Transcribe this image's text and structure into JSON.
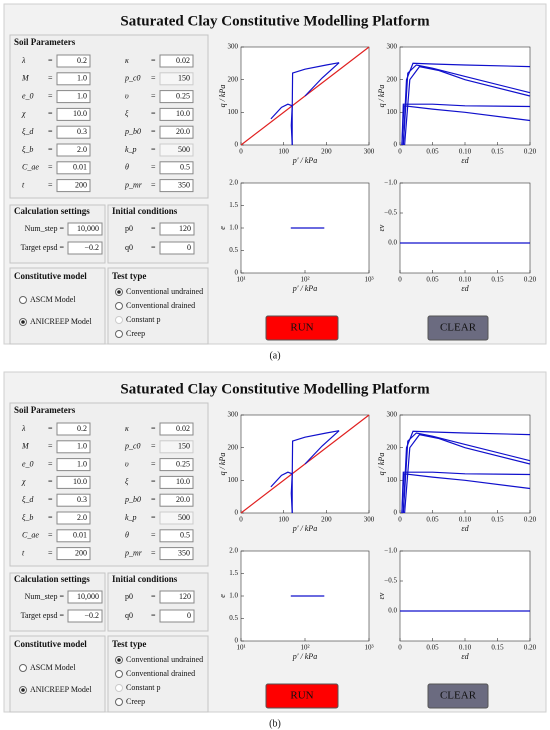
{
  "panels": [
    {
      "title": "Saturated Clay Constitutive Modelling Platform",
      "caption": "(a)",
      "soil_parameters": {
        "heading": "Soil Parameters",
        "rows": [
          [
            {
              "label": "λ",
              "value": "0.2"
            },
            {
              "label": "κ",
              "value": "0.02"
            }
          ],
          [
            {
              "label": "M",
              "value": "1.0"
            },
            {
              "label": "p_c0",
              "value": "150",
              "disabled": true
            }
          ],
          [
            {
              "label": "e_0",
              "value": "1.0"
            },
            {
              "label": "υ",
              "value": "0.25"
            }
          ],
          [
            {
              "label": "χ",
              "value": "10.0"
            },
            {
              "label": "ξ",
              "value": "10.0"
            }
          ],
          [
            {
              "label": "ξ_d",
              "value": "0.3"
            },
            {
              "label": "p_b0",
              "value": "20.0"
            }
          ],
          [
            {
              "label": "ξ_b",
              "value": "2.0"
            },
            {
              "label": "k_p",
              "value": "500",
              "disabled": true
            }
          ],
          [
            {
              "label": "C_ae",
              "value": "0.01"
            },
            {
              "label": "θ",
              "value": "0.5"
            }
          ],
          [
            {
              "label": "t",
              "value": "200"
            },
            {
              "label": "p_mr",
              "value": "350"
            }
          ]
        ]
      },
      "calculation_settings": {
        "heading": "Calculation settings",
        "rows": [
          {
            "label": "Num_step =",
            "value": "10,000"
          },
          {
            "label": "Target epsd =",
            "value": "−0.2"
          }
        ]
      },
      "initial_conditions": {
        "heading": "Initial conditions",
        "rows": [
          {
            "label": "p0",
            "value": "120"
          },
          {
            "label": "q0",
            "value": "0"
          }
        ]
      },
      "constitutive_model": {
        "heading": "Constitutive model",
        "options": [
          {
            "label": "ASCM Model",
            "checked": false
          },
          {
            "label": "ANICREEP Model",
            "checked": true
          }
        ]
      },
      "test_type": {
        "heading": "Test type",
        "options": [
          {
            "label": "Conventional undrained",
            "checked": true
          },
          {
            "label": "Conventional drained",
            "checked": false
          },
          {
            "label": "Constant p",
            "checked": false,
            "disabled": true
          },
          {
            "label": "Creep",
            "checked": false
          }
        ]
      },
      "buttons": [
        {
          "label": "RUN",
          "color": "#ff0000"
        },
        {
          "label": "CLEAR",
          "color": "#6b6b80"
        }
      ],
      "plots": [
        {
          "x_label": "p′ / kPa",
          "y_label": "q / kPa",
          "xlim": [
            0,
            300
          ],
          "ylim": [
            0,
            300
          ],
          "xticks": [
            0,
            100,
            200,
            300
          ],
          "yticks": [
            0,
            100,
            200,
            300
          ],
          "series": [
            {
              "color": "#e02020",
              "x": [
                0,
                300
              ],
              "y": [
                0,
                300
              ]
            },
            {
              "color": "#1010cc",
              "x": [
                120,
                120,
                121,
                150,
                200,
                230
              ],
              "y": [
                0,
                100,
                220,
                232,
                245,
                252
              ]
            },
            {
              "color": "#1010cc",
              "x": [
                150,
                190,
                230
              ],
              "y": [
                150,
                205,
                252
              ]
            },
            {
              "color": "#1010cc",
              "x": [
                70,
                95,
                110,
                120,
                118,
                120
              ],
              "y": [
                80,
                115,
                125,
                120,
                60,
                0
              ]
            }
          ]
        },
        {
          "x_label": "εd",
          "y_label": "q / kPa",
          "xlim": [
            0,
            0.2
          ],
          "ylim": [
            0,
            300
          ],
          "xticks": [
            0,
            0.05,
            {
              "value": 0.1,
              "label": "0.10"
            },
            0.15,
            {
              "value": 0.2,
              "label": "0.20"
            }
          ],
          "yticks": [
            0,
            100,
            200,
            300
          ],
          "series": [
            {
              "color": "#1010cc",
              "x": [
                0.005,
                0.01,
                0.02,
                0.05,
                0.1,
                0.2
              ],
              "y": [
                0,
                200,
                250,
                248,
                245,
                240
              ]
            },
            {
              "color": "#1010cc",
              "x": [
                0.005,
                0.012,
                0.025,
                0.05,
                0.1,
                0.2
              ],
              "y": [
                0,
                220,
                245,
                235,
                210,
                160
              ]
            },
            {
              "color": "#1010cc",
              "x": [
                0.007,
                0.015,
                0.03,
                0.06,
                0.1,
                0.2
              ],
              "y": [
                0,
                200,
                240,
                228,
                200,
                150
              ]
            },
            {
              "color": "#1010cc",
              "x": [
                0.003,
                0.006,
                0.05,
                0.1,
                0.2
              ],
              "y": [
                0,
                120,
                110,
                100,
                75
              ]
            },
            {
              "color": "#1010cc",
              "x": [
                0.003,
                0.005,
                0.05,
                0.1,
                0.2
              ],
              "y": [
                0,
                125,
                125,
                120,
                118
              ]
            }
          ]
        },
        {
          "x_label": "p′ / kPa",
          "y_label": "e",
          "xlim": [
            10,
            1000
          ],
          "log_x": true,
          "ylim": [
            0,
            2
          ],
          "xticks": [
            {
              "value": 10,
              "label": "10¹"
            },
            {
              "value": 100,
              "label": "10²"
            },
            {
              "value": 1000,
              "label": "10³"
            }
          ],
          "yticks": [
            0,
            0.5,
            {
              "value": 1,
              "label": "1.0"
            },
            1.5,
            {
              "value": 2,
              "label": "2.0"
            }
          ],
          "series": [
            {
              "color": "#1010cc",
              "x": [
                60,
                200
              ],
              "y": [
                1,
                1
              ]
            }
          ]
        },
        {
          "x_label": "εd",
          "y_label": "εv",
          "xlim": [
            0,
            0.2
          ],
          "ylim": [
            0.5,
            -1
          ],
          "xticks": [
            0,
            0.05,
            {
              "value": 0.1,
              "label": "0.10"
            },
            0.15,
            {
              "value": 0.2,
              "label": "0.20"
            }
          ],
          "yticks": [
            {
              "value": -1,
              "label": "−1.0"
            },
            {
              "value": -0.5,
              "label": "−0.5"
            },
            {
              "value": 0,
              "label": "0.0"
            }
          ],
          "series": [
            {
              "color": "#1010cc",
              "x": [
                0,
                0.2
              ],
              "y": [
                0,
                0
              ]
            }
          ]
        }
      ]
    },
    {
      "title": "Saturated Clay Constitutive Modelling Platform",
      "caption": "(b)",
      "soil_parameters": {
        "heading": "Soil Parameters",
        "rows": [
          [
            {
              "label": "λ",
              "value": "0.2"
            },
            {
              "label": "κ",
              "value": "0.02"
            }
          ],
          [
            {
              "label": "M",
              "value": "1.0"
            },
            {
              "label": "p_c0",
              "value": "150",
              "disabled": true
            }
          ],
          [
            {
              "label": "e_0",
              "value": "1.0"
            },
            {
              "label": "υ",
              "value": "0.25"
            }
          ],
          [
            {
              "label": "χ",
              "value": "10.0"
            },
            {
              "label": "ξ",
              "value": "10.0"
            }
          ],
          [
            {
              "label": "ξ_d",
              "value": "0.3"
            },
            {
              "label": "p_b0",
              "value": "20.0"
            }
          ],
          [
            {
              "label": "ξ_b",
              "value": "2.0"
            },
            {
              "label": "k_p",
              "value": "500",
              "disabled": true
            }
          ],
          [
            {
              "label": "C_ae",
              "value": "0.01"
            },
            {
              "label": "θ",
              "value": "0.5"
            }
          ],
          [
            {
              "label": "t",
              "value": "200"
            },
            {
              "label": "p_mr",
              "value": "350"
            }
          ]
        ]
      },
      "calculation_settings": {
        "heading": "Calculation settings",
        "rows": [
          {
            "label": "Num_step =",
            "value": "10,000"
          },
          {
            "label": "Target epsd =",
            "value": "−0.2"
          }
        ]
      },
      "initial_conditions": {
        "heading": "Initial conditions",
        "rows": [
          {
            "label": "p0",
            "value": "120"
          },
          {
            "label": "q0",
            "value": "0"
          }
        ]
      },
      "constitutive_model": {
        "heading": "Constitutive model",
        "options": [
          {
            "label": "ASCM Model",
            "checked": false
          },
          {
            "label": "ANICREEP Model",
            "checked": true
          }
        ]
      },
      "test_type": {
        "heading": "Test type",
        "options": [
          {
            "label": "Conventional undrained",
            "checked": true
          },
          {
            "label": "Conventional drained",
            "checked": false
          },
          {
            "label": "Constant p",
            "checked": false,
            "disabled": true
          },
          {
            "label": "Creep",
            "checked": false
          }
        ]
      },
      "buttons": [
        {
          "label": "RUN",
          "color": "#ff0000"
        },
        {
          "label": "CLEAR",
          "color": "#6b6b80"
        }
      ],
      "plots": [
        {
          "x_label": "p′ / kPa",
          "y_label": "q / kPa",
          "xlim": [
            0,
            300
          ],
          "ylim": [
            0,
            300
          ],
          "xticks": [
            0,
            100,
            200,
            300
          ],
          "yticks": [
            0,
            100,
            200,
            300
          ],
          "series": [
            {
              "color": "#e02020",
              "x": [
                0,
                300
              ],
              "y": [
                0,
                300
              ]
            },
            {
              "color": "#1010cc",
              "x": [
                120,
                120,
                121,
                150,
                200,
                230
              ],
              "y": [
                0,
                100,
                220,
                232,
                245,
                252
              ]
            },
            {
              "color": "#1010cc",
              "x": [
                150,
                190,
                230
              ],
              "y": [
                150,
                205,
                252
              ]
            },
            {
              "color": "#1010cc",
              "x": [
                70,
                95,
                110,
                120,
                118,
                120
              ],
              "y": [
                80,
                115,
                125,
                120,
                60,
                0
              ]
            }
          ]
        },
        {
          "x_label": "εd",
          "y_label": "q / kPa",
          "xlim": [
            0,
            0.2
          ],
          "ylim": [
            0,
            300
          ],
          "xticks": [
            0,
            0.05,
            {
              "value": 0.1,
              "label": "0.10"
            },
            0.15,
            {
              "value": 0.2,
              "label": "0.20"
            }
          ],
          "yticks": [
            0,
            100,
            200,
            300
          ],
          "series": [
            {
              "color": "#1010cc",
              "x": [
                0.005,
                0.01,
                0.02,
                0.05,
                0.1,
                0.2
              ],
              "y": [
                0,
                200,
                250,
                248,
                245,
                240
              ]
            },
            {
              "color": "#1010cc",
              "x": [
                0.005,
                0.012,
                0.025,
                0.05,
                0.1,
                0.2
              ],
              "y": [
                0,
                220,
                245,
                235,
                210,
                160
              ]
            },
            {
              "color": "#1010cc",
              "x": [
                0.007,
                0.015,
                0.03,
                0.06,
                0.1,
                0.2
              ],
              "y": [
                0,
                200,
                240,
                228,
                200,
                150
              ]
            },
            {
              "color": "#1010cc",
              "x": [
                0.003,
                0.006,
                0.05,
                0.1,
                0.2
              ],
              "y": [
                0,
                120,
                110,
                100,
                75
              ]
            },
            {
              "color": "#1010cc",
              "x": [
                0.003,
                0.005,
                0.05,
                0.1,
                0.2
              ],
              "y": [
                0,
                125,
                125,
                120,
                118
              ]
            }
          ]
        },
        {
          "x_label": "p′ / kPa",
          "y_label": "e",
          "xlim": [
            10,
            1000
          ],
          "log_x": true,
          "ylim": [
            0,
            2
          ],
          "xticks": [
            {
              "value": 10,
              "label": "10¹"
            },
            {
              "value": 100,
              "label": "10²"
            },
            {
              "value": 1000,
              "label": "10³"
            }
          ],
          "yticks": [
            0,
            0.5,
            {
              "value": 1,
              "label": "1.0"
            },
            1.5,
            {
              "value": 2,
              "label": "2.0"
            }
          ],
          "series": [
            {
              "color": "#1010cc",
              "x": [
                60,
                200
              ],
              "y": [
                1,
                1
              ]
            }
          ]
        },
        {
          "x_label": "εd",
          "y_label": "εv",
          "xlim": [
            0,
            0.2
          ],
          "ylim": [
            0.5,
            -1
          ],
          "xticks": [
            0,
            0.05,
            {
              "value": 0.1,
              "label": "0.10"
            },
            0.15,
            {
              "value": 0.2,
              "label": "0.20"
            }
          ],
          "yticks": [
            {
              "value": -1,
              "label": "−1.0"
            },
            {
              "value": -0.5,
              "label": "−0.5"
            },
            {
              "value": 0,
              "label": "0.0"
            }
          ],
          "series": [
            {
              "color": "#1010cc",
              "x": [
                0,
                0.2
              ],
              "y": [
                0,
                0
              ]
            }
          ]
        }
      ]
    }
  ]
}
